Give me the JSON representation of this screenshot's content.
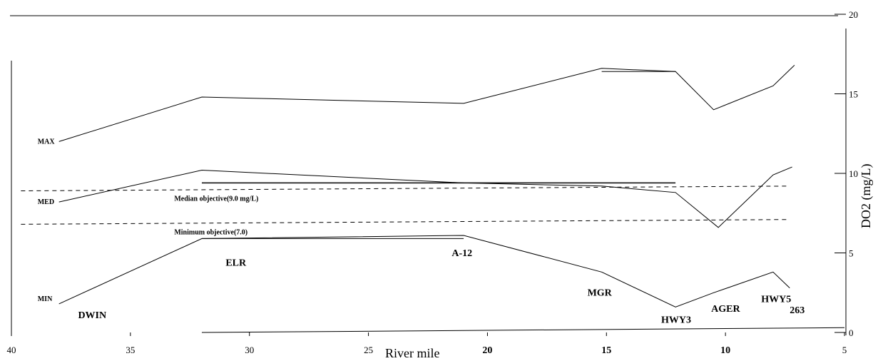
{
  "chart_data": {
    "type": "line",
    "x_axis": {
      "label": "River mile",
      "ticks": [
        40,
        35,
        30,
        25,
        20,
        15,
        10,
        5
      ],
      "bold_ticks": [
        20,
        15,
        10
      ],
      "range": [
        40,
        5
      ],
      "reversed": true
    },
    "y_axis": {
      "label": "DO2 (mg/L)",
      "ticks": [
        0,
        5,
        10,
        15,
        20
      ],
      "range": [
        0,
        20
      ],
      "position": "right"
    },
    "grid": false,
    "series": [
      {
        "name": "MAX",
        "points": [
          [
            38,
            12.0
          ],
          [
            32,
            14.8
          ],
          [
            21,
            14.4
          ],
          [
            15.2,
            16.6
          ],
          [
            12.1,
            16.4
          ],
          [
            10.5,
            14.0
          ],
          [
            8,
            15.5
          ],
          [
            7.1,
            16.8
          ]
        ]
      },
      {
        "name": "MED",
        "points": [
          [
            38,
            8.2
          ],
          [
            32,
            10.2
          ],
          [
            21,
            9.4
          ],
          [
            15.2,
            9.2
          ],
          [
            12.1,
            8.8
          ],
          [
            10.3,
            6.6
          ],
          [
            8,
            9.9
          ],
          [
            7.2,
            10.4
          ]
        ]
      },
      {
        "name": "MIN",
        "points": [
          [
            38,
            1.8
          ],
          [
            32,
            5.9
          ],
          [
            21,
            6.1
          ],
          [
            15.2,
            3.8
          ],
          [
            12.1,
            1.6
          ],
          [
            10.5,
            2.5
          ],
          [
            8,
            3.8
          ],
          [
            7.3,
            2.8
          ]
        ]
      }
    ],
    "segments": [
      {
        "x": [
          15.2,
          12.1
        ],
        "y": [
          16.4,
          16.4
        ]
      },
      {
        "x": [
          32,
          12.1
        ],
        "y": [
          9.4,
          9.4
        ]
      },
      {
        "x": [
          32,
          21
        ],
        "y": [
          5.9,
          5.9
        ]
      },
      {
        "x": [
          32,
          5
        ],
        "y": [
          0,
          0.3
        ]
      }
    ],
    "objectives": [
      {
        "label": "Median objective(9.0 mg/L)",
        "x": [
          39.6,
          7.3
        ],
        "y": [
          8.9,
          9.2
        ],
        "dashed": true
      },
      {
        "label": "Minimum objective(7.0)",
        "x": [
          39.6,
          7.3
        ],
        "y": [
          6.8,
          7.1
        ],
        "dashed": true
      }
    ],
    "sites": [
      {
        "label": "DWIN",
        "x": 37.2,
        "y": 0.9
      },
      {
        "label": "ELR",
        "x": 31,
        "y": 4.2
      },
      {
        "label": "A-12",
        "x": 21.5,
        "y": 4.8
      },
      {
        "label": "MGR",
        "x": 15.8,
        "y": 2.3
      },
      {
        "label": "HWY3",
        "x": 12.7,
        "y": 0.6
      },
      {
        "label": "AGER",
        "x": 10.6,
        "y": 1.3
      },
      {
        "label": "HWY5",
        "x": 8.5,
        "y": 1.9
      },
      {
        "label": "263",
        "x": 7.3,
        "y": 1.2
      }
    ]
  }
}
